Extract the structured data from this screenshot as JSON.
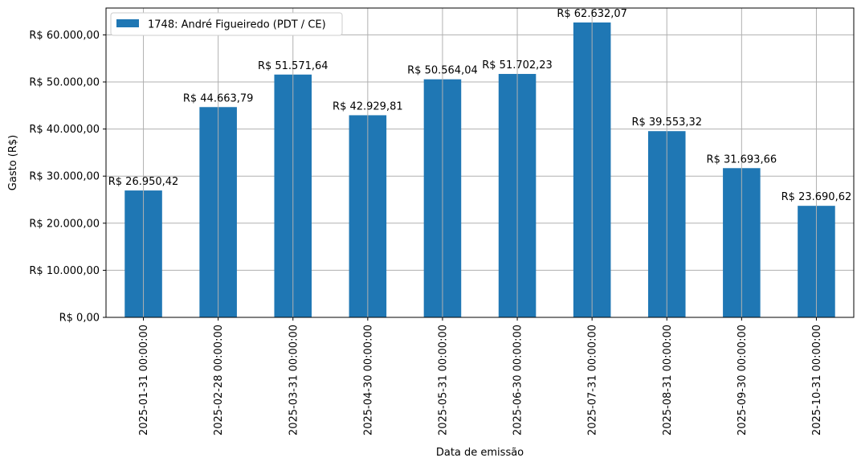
{
  "chart_data": {
    "type": "bar",
    "categories": [
      "2025-01-31 00:00:00",
      "2025-02-28 00:00:00",
      "2025-03-31 00:00:00",
      "2025-04-30 00:00:00",
      "2025-05-31 00:00:00",
      "2025-06-30 00:00:00",
      "2025-07-31 00:00:00",
      "2025-08-31 00:00:00",
      "2025-09-30 00:00:00",
      "2025-10-31 00:00:00"
    ],
    "series": [
      {
        "name": "1748: André Figueiredo (PDT / CE)",
        "color": "#1f77b4",
        "values": [
          26950.42,
          44663.79,
          51571.64,
          42929.81,
          50564.04,
          51702.23,
          62632.07,
          39553.32,
          31693.66,
          23690.62
        ],
        "labels": [
          "R$ 26.950,42",
          "R$ 44.663,79",
          "R$ 51.571,64",
          "R$ 42.929,81",
          "R$ 50.564,04",
          "R$ 51.702,23",
          "R$ 62.632,07",
          "R$ 39.553,32",
          "R$ 31.693,66",
          "R$ 23.690,62"
        ]
      }
    ],
    "xlabel": "Data de emissão",
    "ylabel": "Gasto (R$)",
    "ylim": [
      0,
      65700
    ],
    "yticks": [
      0,
      10000,
      20000,
      30000,
      40000,
      50000,
      60000
    ],
    "ytick_labels": [
      "R$ 0,00",
      "R$ 10.000,00",
      "R$ 20.000,00",
      "R$ 30.000,00",
      "R$ 40.000,00",
      "R$ 50.000,00",
      "R$ 60.000,00"
    ],
    "grid": true,
    "legend_position": "top-left"
  }
}
